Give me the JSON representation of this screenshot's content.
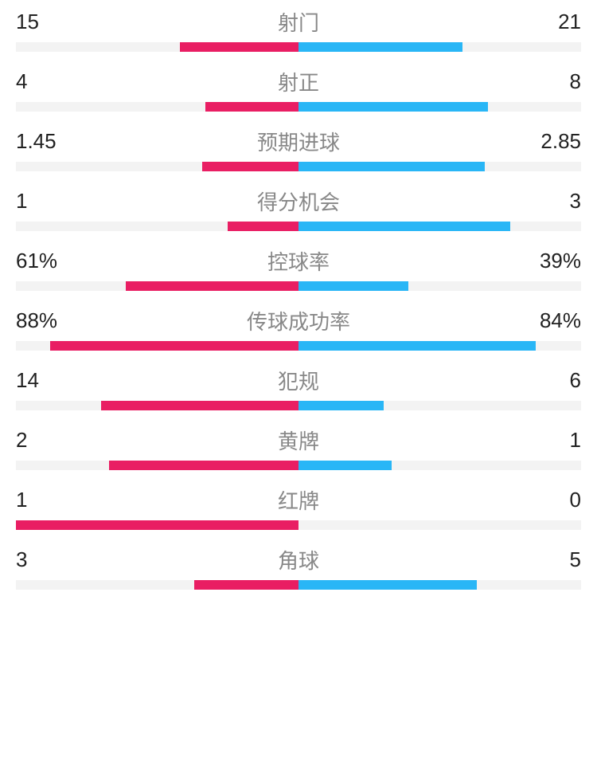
{
  "colors": {
    "left_bar": "#e91e63",
    "right_bar": "#29b6f6",
    "track": "#f3f3f3",
    "value_text": "#222222",
    "label_text": "#888888",
    "background": "#ffffff"
  },
  "typography": {
    "value_fontsize": 26,
    "label_fontsize": 26
  },
  "bar": {
    "height": 12,
    "track_width_pct": 100
  },
  "stats": [
    {
      "label": "射门",
      "left_value": "15",
      "right_value": "21",
      "left_pct": 42,
      "right_pct": 58
    },
    {
      "label": "射正",
      "left_value": "4",
      "right_value": "8",
      "left_pct": 33,
      "right_pct": 67
    },
    {
      "label": "预期进球",
      "left_value": "1.45",
      "right_value": "2.85",
      "left_pct": 34,
      "right_pct": 66
    },
    {
      "label": "得分机会",
      "left_value": "1",
      "right_value": "3",
      "left_pct": 25,
      "right_pct": 75
    },
    {
      "label": "控球率",
      "left_value": "61%",
      "right_value": "39%",
      "left_pct": 61,
      "right_pct": 39
    },
    {
      "label": "传球成功率",
      "left_value": "88%",
      "right_value": "84%",
      "left_pct": 88,
      "right_pct": 84
    },
    {
      "label": "犯规",
      "left_value": "14",
      "right_value": "6",
      "left_pct": 70,
      "right_pct": 30
    },
    {
      "label": "黄牌",
      "left_value": "2",
      "right_value": "1",
      "left_pct": 67,
      "right_pct": 33
    },
    {
      "label": "红牌",
      "left_value": "1",
      "right_value": "0",
      "left_pct": 100,
      "right_pct": 0
    },
    {
      "label": "角球",
      "left_value": "3",
      "right_value": "5",
      "left_pct": 37,
      "right_pct": 63
    }
  ]
}
